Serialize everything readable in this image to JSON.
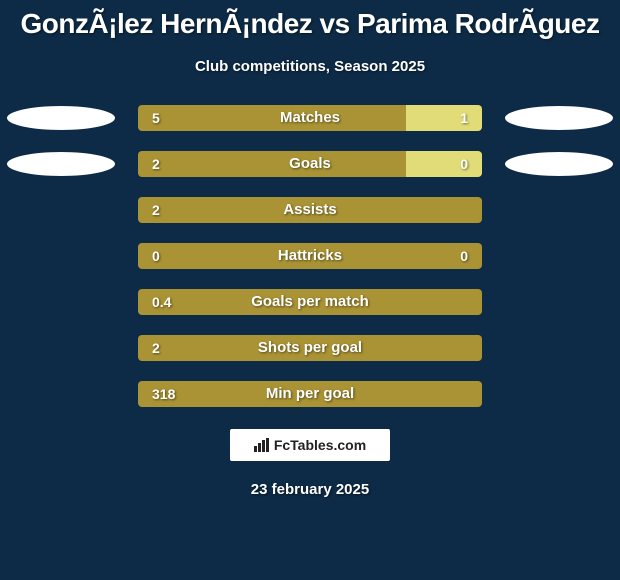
{
  "background_color": "#0d2b46",
  "text_color": "#ffffff",
  "title": "GonzÃ¡lez HernÃ¡ndez vs Parima RodrÃ­guez",
  "title_fontsize": 28,
  "subtitle": "Club competitions, Season 2025",
  "subtitle_fontsize": 15,
  "bar_left_color": "#a99334",
  "bar_right_color": "#e1dc77",
  "ellipse_left_fill": "#ffffff",
  "ellipse_left_stroke": "#0d2b46",
  "ellipse_right_fill": "#ffffff",
  "ellipse_right_stroke": "#0d2b46",
  "label_fontsize": 15,
  "value_fontsize": 14,
  "rows": [
    {
      "label": "Matches",
      "left_val": "5",
      "right_val": "1",
      "left_pct": 78,
      "show_ellipse": true,
      "show_right_val": true
    },
    {
      "label": "Goals",
      "left_val": "2",
      "right_val": "0",
      "left_pct": 78,
      "show_ellipse": true,
      "show_right_val": true
    },
    {
      "label": "Assists",
      "left_val": "2",
      "right_val": "",
      "left_pct": 100,
      "show_ellipse": false,
      "show_right_val": false
    },
    {
      "label": "Hattricks",
      "left_val": "0",
      "right_val": "0",
      "left_pct": 100,
      "show_ellipse": false,
      "show_right_val": true
    },
    {
      "label": "Goals per match",
      "left_val": "0.4",
      "right_val": "",
      "left_pct": 100,
      "show_ellipse": false,
      "show_right_val": false
    },
    {
      "label": "Shots per goal",
      "left_val": "2",
      "right_val": "",
      "left_pct": 100,
      "show_ellipse": false,
      "show_right_val": false
    },
    {
      "label": "Min per goal",
      "left_val": "318",
      "right_val": "",
      "left_pct": 100,
      "show_ellipse": false,
      "show_right_val": false
    }
  ],
  "footer_brand": "FcTables.com",
  "footer_bg": "#ffffff",
  "date": "23 february 2025"
}
